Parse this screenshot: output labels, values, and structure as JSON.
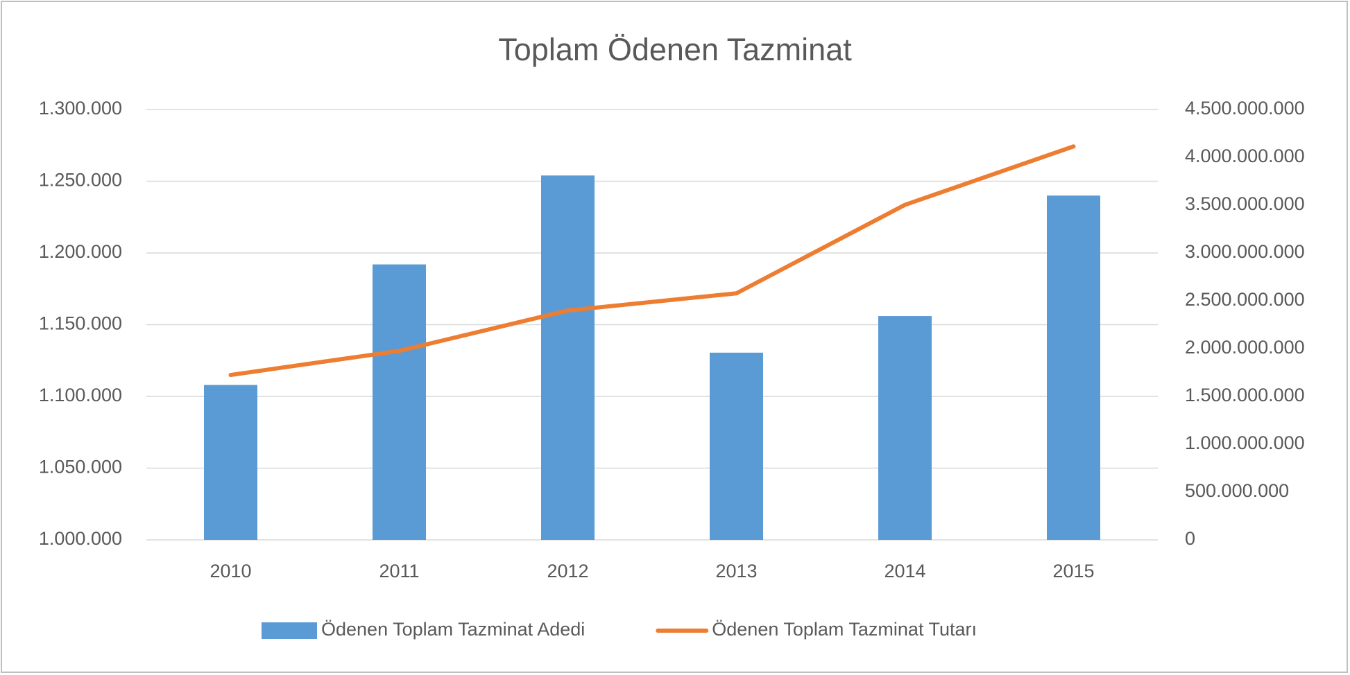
{
  "chart_data": {
    "type": "bar",
    "title": "Toplam Ödenen Tazminat",
    "categories": [
      "2010",
      "2011",
      "2012",
      "2013",
      "2014",
      "2015"
    ],
    "series": [
      {
        "name": "Ödenen Toplam Tazminat Adedi",
        "type": "bar",
        "color": "#5b9bd5",
        "values": [
          1108000,
          1192000,
          1254000,
          1130500,
          1156000,
          1240000
        ]
      },
      {
        "name": "Ödenen Toplam Tazminat Tutarı",
        "type": "line",
        "axis": "y2",
        "color": "#ed7d31",
        "values": [
          1724000000,
          1976000000,
          2398000000,
          2578000000,
          3503000000,
          4114000000
        ]
      }
    ],
    "ylim": [
      1000000,
      1300000
    ],
    "yticks": [
      {
        "value": 1000000,
        "label": "1.000.000"
      },
      {
        "value": 1050000,
        "label": "1.050.000"
      },
      {
        "value": 1100000,
        "label": "1.100.000"
      },
      {
        "value": 1150000,
        "label": "1.150.000"
      },
      {
        "value": 1200000,
        "label": "1.200.000"
      },
      {
        "value": 1250000,
        "label": "1.250.000"
      },
      {
        "value": 1300000,
        "label": "1.300.000"
      }
    ],
    "y2lim": [
      0,
      4500000000
    ],
    "y2ticks": [
      0,
      {
        "value": 500000000,
        "label": "500.000.000"
      },
      {
        "value": 1000000000,
        "label": "1.000.000.000"
      },
      {
        "value": 1500000000,
        "label": "1.500.000.000"
      },
      {
        "value": 2000000000,
        "label": "2.000.000.000"
      },
      {
        "value": 2500000000,
        "label": "2.500.000.000"
      },
      {
        "value": 3000000000,
        "label": "3.000.000.000"
      },
      {
        "value": 3500000000,
        "label": "3.500.000.000"
      },
      {
        "value": 4000000000,
        "label": "4.000.000.000"
      },
      {
        "value": 4500000000,
        "label": "4.500.000.000"
      }
    ],
    "grid": true
  }
}
